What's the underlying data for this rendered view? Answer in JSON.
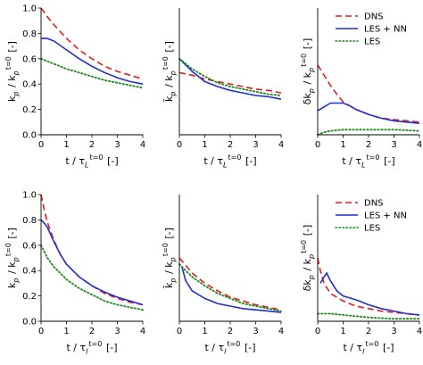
{
  "colors": {
    "DNS": "#e41a1c",
    "LES + NN": "#1f2fd1",
    "LES": "#1a8a1a"
  },
  "chart_data": [
    {
      "type": "line",
      "row": 0,
      "col": 0,
      "xlim": [
        0,
        4
      ],
      "ylim": [
        0,
        1.0
      ],
      "xticks": [
        "0",
        "1",
        "2",
        "3",
        "4"
      ],
      "yticks": [
        {
          "v": 0.0,
          "t": "0.0"
        },
        {
          "v": 0.2,
          "t": "0.2"
        },
        {
          "v": 0.4,
          "t": "0.4"
        },
        {
          "v": 0.6,
          "t": "0.6"
        },
        {
          "v": 0.8,
          "t": "0.8"
        },
        {
          "v": 1.0,
          "t": "1.0"
        }
      ],
      "xlabel": "t / τ_L^{t=0} [-]",
      "ylabel": "k_p / k_p^{t=0} [-]",
      "legend": false,
      "series": [
        {
          "name": "DNS",
          "style": "dashed",
          "points": [
            [
              0,
              1.0
            ],
            [
              0.25,
              0.93
            ],
            [
              0.5,
              0.87
            ],
            [
              1,
              0.76
            ],
            [
              1.5,
              0.67
            ],
            [
              2,
              0.6
            ],
            [
              2.5,
              0.54
            ],
            [
              3,
              0.5
            ],
            [
              3.5,
              0.47
            ],
            [
              4,
              0.44
            ]
          ]
        },
        {
          "name": "LES + NN",
          "style": "solid",
          "points": [
            [
              0,
              0.76
            ],
            [
              0.25,
              0.76
            ],
            [
              0.5,
              0.74
            ],
            [
              1,
              0.67
            ],
            [
              1.5,
              0.6
            ],
            [
              2,
              0.54
            ],
            [
              2.5,
              0.49
            ],
            [
              3,
              0.45
            ],
            [
              3.5,
              0.42
            ],
            [
              4,
              0.4
            ]
          ]
        },
        {
          "name": "LES",
          "style": "dotted",
          "points": [
            [
              0,
              0.6
            ],
            [
              0.5,
              0.56
            ],
            [
              1,
              0.52
            ],
            [
              1.5,
              0.49
            ],
            [
              2,
              0.46
            ],
            [
              2.5,
              0.43
            ],
            [
              3,
              0.41
            ],
            [
              3.5,
              0.39
            ],
            [
              4,
              0.37
            ]
          ]
        }
      ]
    },
    {
      "type": "line",
      "row": 0,
      "col": 1,
      "xlim": [
        0,
        4
      ],
      "ylim": [
        0,
        1.0
      ],
      "xticks": [
        "0",
        "1",
        "2",
        "3",
        "4"
      ],
      "yticks": [],
      "xlabel": "t / τ_L^{t=0} [-]",
      "ylabel": "k̃_p / k_p^{t=0} [-]",
      "legend": false,
      "series": [
        {
          "name": "DNS",
          "style": "dashed",
          "points": [
            [
              0,
              0.49
            ],
            [
              0.5,
              0.47
            ],
            [
              1,
              0.44
            ],
            [
              1.5,
              0.42
            ],
            [
              2,
              0.4
            ],
            [
              2.5,
              0.38
            ],
            [
              3,
              0.36
            ],
            [
              3.5,
              0.35
            ],
            [
              4,
              0.33
            ]
          ]
        },
        {
          "name": "LES + NN",
          "style": "solid",
          "points": [
            [
              0,
              0.6
            ],
            [
              0.25,
              0.55
            ],
            [
              0.5,
              0.5
            ],
            [
              1,
              0.42
            ],
            [
              1.5,
              0.38
            ],
            [
              2,
              0.35
            ],
            [
              2.5,
              0.33
            ],
            [
              3,
              0.31
            ],
            [
              3.5,
              0.3
            ],
            [
              4,
              0.28
            ]
          ]
        },
        {
          "name": "LES",
          "style": "dotted",
          "points": [
            [
              0,
              0.6
            ],
            [
              0.25,
              0.56
            ],
            [
              0.5,
              0.52
            ],
            [
              1,
              0.46
            ],
            [
              1.5,
              0.41
            ],
            [
              2,
              0.38
            ],
            [
              2.5,
              0.36
            ],
            [
              3,
              0.34
            ],
            [
              3.5,
              0.32
            ],
            [
              4,
              0.31
            ]
          ]
        }
      ]
    },
    {
      "type": "line",
      "row": 0,
      "col": 2,
      "xlim": [
        0,
        4
      ],
      "ylim": [
        0,
        1.0
      ],
      "xticks": [
        "0",
        "1",
        "2",
        "3",
        "4"
      ],
      "yticks": [],
      "xlabel": "t / τ_L^{t=0} [-]",
      "ylabel": "δk_p / k_p^{t=0} [-]",
      "legend": true,
      "series": [
        {
          "name": "DNS",
          "style": "dashed",
          "points": [
            [
              0,
              0.55
            ],
            [
              0.25,
              0.47
            ],
            [
              0.5,
              0.39
            ],
            [
              0.75,
              0.32
            ],
            [
              1,
              0.26
            ],
            [
              1.5,
              0.2
            ],
            [
              2,
              0.16
            ],
            [
              2.5,
              0.13
            ],
            [
              3,
              0.12
            ],
            [
              3.5,
              0.11
            ],
            [
              4,
              0.1
            ]
          ]
        },
        {
          "name": "LES + NN",
          "style": "solid",
          "points": [
            [
              0,
              0.19
            ],
            [
              0.25,
              0.22
            ],
            [
              0.5,
              0.25
            ],
            [
              1,
              0.25
            ],
            [
              1.25,
              0.23
            ],
            [
              1.5,
              0.2
            ],
            [
              2,
              0.16
            ],
            [
              2.5,
              0.13
            ],
            [
              3,
              0.11
            ],
            [
              3.5,
              0.1
            ],
            [
              4,
              0.09
            ]
          ]
        },
        {
          "name": "LES",
          "style": "dotted",
          "points": [
            [
              0,
              0.0
            ],
            [
              0.25,
              0.02
            ],
            [
              0.5,
              0.03
            ],
            [
              1,
              0.04
            ],
            [
              2,
              0.04
            ],
            [
              3,
              0.04
            ],
            [
              4,
              0.03
            ]
          ]
        }
      ]
    },
    {
      "type": "line",
      "row": 1,
      "col": 0,
      "xlim": [
        0,
        4
      ],
      "ylim": [
        0,
        1.0
      ],
      "xticks": [
        "0",
        "1",
        "2",
        "3",
        "4"
      ],
      "yticks": [
        {
          "v": 0.0,
          "t": "0.0"
        },
        {
          "v": 0.2,
          "t": "0.2"
        },
        {
          "v": 0.4,
          "t": "0.4"
        },
        {
          "v": 0.6,
          "t": "0.6"
        },
        {
          "v": 0.8,
          "t": "0.8"
        },
        {
          "v": 1.0,
          "t": "1.0"
        }
      ],
      "xlabel": "t / τ_l^{t=0} [-]",
      "ylabel": "k_p / k_p^{t=0} [-]",
      "legend": false,
      "series": [
        {
          "name": "DNS",
          "style": "dashed",
          "points": [
            [
              0,
              1.0
            ],
            [
              0.1,
              0.9
            ],
            [
              0.25,
              0.78
            ],
            [
              0.5,
              0.64
            ],
            [
              0.75,
              0.53
            ],
            [
              1,
              0.45
            ],
            [
              1.5,
              0.35
            ],
            [
              2,
              0.28
            ],
            [
              2.5,
              0.22
            ],
            [
              3,
              0.18
            ],
            [
              3.5,
              0.15
            ],
            [
              4,
              0.13
            ]
          ]
        },
        {
          "name": "LES + NN",
          "style": "solid",
          "points": [
            [
              0,
              0.8
            ],
            [
              0.1,
              0.78
            ],
            [
              0.25,
              0.74
            ],
            [
              0.5,
              0.63
            ],
            [
              0.75,
              0.53
            ],
            [
              1,
              0.45
            ],
            [
              1.5,
              0.35
            ],
            [
              2,
              0.28
            ],
            [
              2.5,
              0.23
            ],
            [
              3,
              0.19
            ],
            [
              3.5,
              0.16
            ],
            [
              4,
              0.13
            ]
          ]
        },
        {
          "name": "LES",
          "style": "dotted",
          "points": [
            [
              0,
              0.6
            ],
            [
              0.25,
              0.5
            ],
            [
              0.5,
              0.43
            ],
            [
              1,
              0.33
            ],
            [
              1.5,
              0.26
            ],
            [
              2,
              0.21
            ],
            [
              2.5,
              0.16
            ],
            [
              3,
              0.13
            ],
            [
              3.5,
              0.11
            ],
            [
              4,
              0.09
            ]
          ]
        }
      ]
    },
    {
      "type": "line",
      "row": 1,
      "col": 1,
      "xlim": [
        0,
        4
      ],
      "ylim": [
        0,
        1.0
      ],
      "xticks": [
        "0",
        "1",
        "2",
        "3",
        "4"
      ],
      "yticks": [],
      "xlabel": "t / τ_l^{t=0} [-]",
      "ylabel": "k̃_p / k_p^{t=0} [-]",
      "legend": false,
      "series": [
        {
          "name": "DNS",
          "style": "dashed",
          "points": [
            [
              0,
              0.5
            ],
            [
              0.25,
              0.44
            ],
            [
              0.5,
              0.38
            ],
            [
              1,
              0.3
            ],
            [
              1.5,
              0.24
            ],
            [
              2,
              0.19
            ],
            [
              2.5,
              0.16
            ],
            [
              3,
              0.13
            ],
            [
              3.5,
              0.11
            ],
            [
              4,
              0.09
            ]
          ]
        },
        {
          "name": "LES + NN",
          "style": "solid",
          "points": [
            [
              0.1,
              0.43
            ],
            [
              0.25,
              0.32
            ],
            [
              0.5,
              0.24
            ],
            [
              1,
              0.18
            ],
            [
              1.5,
              0.14
            ],
            [
              2,
              0.12
            ],
            [
              2.5,
              0.1
            ],
            [
              3,
              0.09
            ],
            [
              3.5,
              0.08
            ],
            [
              4,
              0.07
            ]
          ]
        },
        {
          "name": "LES",
          "style": "dotted",
          "points": [
            [
              0,
              0.45
            ],
            [
              0.25,
              0.4
            ],
            [
              0.5,
              0.35
            ],
            [
              1,
              0.28
            ],
            [
              1.5,
              0.22
            ],
            [
              2,
              0.18
            ],
            [
              2.5,
              0.14
            ],
            [
              3,
              0.12
            ],
            [
              3.5,
              0.1
            ],
            [
              4,
              0.08
            ]
          ]
        }
      ]
    },
    {
      "type": "line",
      "row": 1,
      "col": 2,
      "xlim": [
        0,
        4
      ],
      "ylim": [
        0,
        1.0
      ],
      "xticks": [
        "0",
        "1",
        "2",
        "3",
        "4"
      ],
      "yticks": [],
      "xlabel": "t / τ_l^{t=0} [-]",
      "ylabel": "δk_p / k_p^{t=0} [-]",
      "legend": true,
      "series": [
        {
          "name": "DNS",
          "style": "dashed",
          "points": [
            [
              0,
              0.5
            ],
            [
              0.1,
              0.4
            ],
            [
              0.25,
              0.3
            ],
            [
              0.5,
              0.22
            ],
            [
              1,
              0.16
            ],
            [
              1.5,
              0.12
            ],
            [
              2,
              0.1
            ],
            [
              2.5,
              0.08
            ],
            [
              3,
              0.07
            ],
            [
              3.5,
              0.06
            ],
            [
              4,
              0.05
            ]
          ]
        },
        {
          "name": "LES + NN",
          "style": "solid",
          "points": [
            [
              0.1,
              0.3
            ],
            [
              0.25,
              0.35
            ],
            [
              0.35,
              0.38
            ],
            [
              0.5,
              0.32
            ],
            [
              0.75,
              0.24
            ],
            [
              1,
              0.2
            ],
            [
              1.5,
              0.17
            ],
            [
              2,
              0.13
            ],
            [
              2.5,
              0.1
            ],
            [
              3,
              0.08
            ],
            [
              3.5,
              0.06
            ],
            [
              4,
              0.05
            ]
          ]
        },
        {
          "name": "LES",
          "style": "dotted",
          "points": [
            [
              0,
              0.06
            ],
            [
              0.25,
              0.06
            ],
            [
              0.5,
              0.06
            ],
            [
              1,
              0.05
            ],
            [
              1.5,
              0.04
            ],
            [
              2,
              0.03
            ],
            [
              3,
              0.02
            ],
            [
              4,
              0.02
            ]
          ]
        }
      ]
    }
  ]
}
